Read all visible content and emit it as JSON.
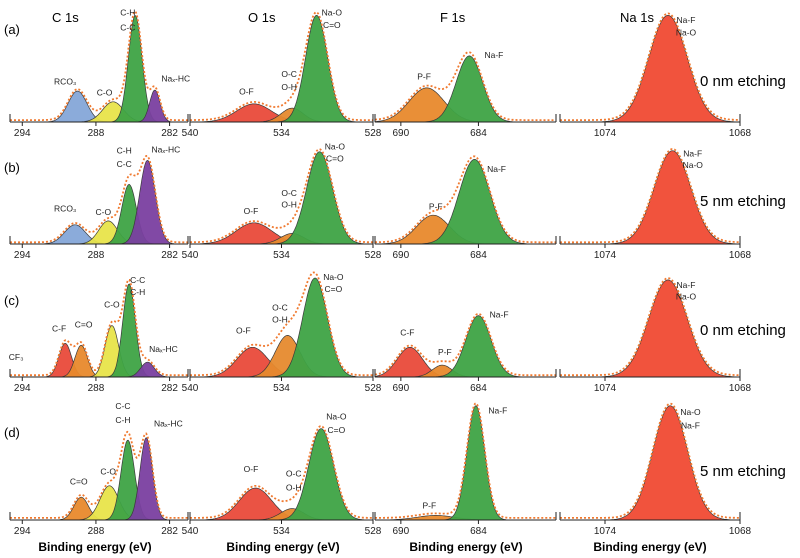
{
  "figure": {
    "x_axis_label": "Binding energy (eV)",
    "columns": [
      {
        "title": "C 1s",
        "xlim": [
          295,
          280.5
        ],
        "ticks": [
          294,
          288,
          282
        ]
      },
      {
        "title": "O 1s",
        "xlim": [
          540,
          528
        ],
        "ticks": [
          540,
          534,
          528
        ]
      },
      {
        "title": "F 1s",
        "xlim": [
          692,
          678
        ],
        "ticks": [
          690,
          684
        ]
      },
      {
        "title": "Na 1s",
        "xlim": [
          1076,
          1068
        ],
        "ticks": [
          1074,
          1068
        ]
      }
    ],
    "rows": [
      {
        "label": "(a)",
        "etch": "0 nm etching"
      },
      {
        "label": "(b)",
        "etch": "5 nm etching"
      },
      {
        "label": "(c)",
        "etch": "0 nm etching"
      },
      {
        "label": "(d)",
        "etch": "5 nm etching"
      }
    ]
  },
  "chart_data": [
    {
      "type": "area",
      "panel": "a-C1s",
      "title": "C 1s",
      "xlabel": "",
      "ylabel": "",
      "xlim": [
        295,
        280.5
      ],
      "ylim": [
        0,
        1.05
      ],
      "series": [
        {
          "name": "RCO3",
          "center": 289.5,
          "fwhm": 1.8,
          "height": 0.29,
          "color": "#85a7d8"
        },
        {
          "name": "C-O",
          "center": 286.6,
          "fwhm": 2.0,
          "height": 0.19,
          "color": "#e8e44a"
        },
        {
          "name": "C-H C-C",
          "center": 284.8,
          "fwhm": 1.3,
          "height": 1.0,
          "color": "#3ea345"
        },
        {
          "name": "Nax-HC",
          "center": 283.2,
          "fwhm": 1.0,
          "height": 0.3,
          "color": "#7a3fa0"
        }
      ],
      "annotations": [
        {
          "text": "C-H",
          "x": 285.4,
          "y": 1.0
        },
        {
          "text": "C-C",
          "x": 285.4,
          "y": 0.86
        },
        {
          "text": "RCO3",
          "x": 290.5,
          "y": 0.35
        },
        {
          "text": "C-O",
          "x": 287.3,
          "y": 0.25
        },
        {
          "text": "Nax-HC",
          "x": 281.5,
          "y": 0.38
        }
      ]
    },
    {
      "type": "area",
      "panel": "a-O1s",
      "title": "O 1s",
      "xlabel": "",
      "ylabel": "",
      "xlim": [
        540,
        528
      ],
      "ylim": [
        0,
        1.05
      ],
      "series": [
        {
          "name": "O-F",
          "center": 535.8,
          "fwhm": 2.7,
          "height": 0.17,
          "color": "#e94a3a"
        },
        {
          "name": "O-C O-H",
          "center": 533.3,
          "fwhm": 1.7,
          "height": 0.13,
          "color": "#e68a2e"
        },
        {
          "name": "Na-O C=O",
          "center": 531.7,
          "fwhm": 1.7,
          "height": 1.0,
          "color": "#3ea345"
        }
      ],
      "annotations": [
        {
          "text": "O-F",
          "x": 536.3,
          "y": 0.26
        },
        {
          "text": "O-C",
          "x": 533.5,
          "y": 0.42
        },
        {
          "text": "O-H",
          "x": 533.5,
          "y": 0.3
        },
        {
          "text": "Na-O",
          "x": 530.7,
          "y": 1.0
        },
        {
          "text": "C=O",
          "x": 530.7,
          "y": 0.88
        }
      ]
    },
    {
      "type": "area",
      "panel": "a-F1s",
      "title": "F 1s",
      "xlabel": "",
      "ylabel": "",
      "xlim": [
        692,
        678
      ],
      "ylim": [
        0,
        1.05
      ],
      "series": [
        {
          "name": "P-F",
          "center": 688.0,
          "fwhm": 3.2,
          "height": 0.32,
          "color": "#e8892c"
        },
        {
          "name": "Na-F",
          "center": 684.7,
          "fwhm": 2.4,
          "height": 0.62,
          "color": "#3ea345"
        }
      ],
      "annotations": [
        {
          "text": "P-F",
          "x": 688.2,
          "y": 0.4
        },
        {
          "text": "Na-F",
          "x": 682.8,
          "y": 0.6
        }
      ]
    },
    {
      "type": "area",
      "panel": "a-Na1s",
      "title": "Na 1s",
      "xlabel": "",
      "ylabel": "",
      "xlim": [
        1076,
        1068
      ],
      "ylim": [
        0,
        1.05
      ],
      "series": [
        {
          "name": "Na-F Na-O",
          "center": 1071.2,
          "fwhm": 2.0,
          "height": 1.0,
          "color": "#f04a33"
        }
      ],
      "annotations": [
        {
          "text": "Na-F",
          "x": 1070.4,
          "y": 0.93
        },
        {
          "text": "Na-O",
          "x": 1070.4,
          "y": 0.81
        }
      ]
    },
    {
      "type": "area",
      "panel": "b-C1s",
      "title": "C 1s",
      "xlabel": "",
      "ylabel": "",
      "xlim": [
        295,
        280.5
      ],
      "ylim": [
        0,
        1.05
      ],
      "series": [
        {
          "name": "RCO3",
          "center": 289.7,
          "fwhm": 2.0,
          "height": 0.2,
          "color": "#85a7d8"
        },
        {
          "name": "C-O",
          "center": 287.0,
          "fwhm": 1.8,
          "height": 0.24,
          "color": "#e8e44a"
        },
        {
          "name": "C-H C-C",
          "center": 285.3,
          "fwhm": 1.4,
          "height": 0.62,
          "color": "#3ea345"
        },
        {
          "name": "Nax-HC",
          "center": 283.8,
          "fwhm": 1.5,
          "height": 0.87,
          "color": "#7a3fa0"
        }
      ],
      "annotations": [
        {
          "text": "C-H",
          "x": 285.7,
          "y": 0.94
        },
        {
          "text": "C-C",
          "x": 285.7,
          "y": 0.8
        },
        {
          "text": "Nax-HC",
          "x": 282.3,
          "y": 0.95
        },
        {
          "text": "RCO3",
          "x": 290.5,
          "y": 0.34
        },
        {
          "text": "C-O",
          "x": 287.4,
          "y": 0.3
        }
      ]
    },
    {
      "type": "area",
      "panel": "b-O1s",
      "title": "O 1s",
      "xlabel": "",
      "ylabel": "",
      "xlim": [
        540,
        528
      ],
      "ylim": [
        0,
        1.05
      ],
      "series": [
        {
          "name": "O-F",
          "center": 535.8,
          "fwhm": 2.8,
          "height": 0.22,
          "color": "#e94a3a"
        },
        {
          "name": "O-C O-H",
          "center": 533.3,
          "fwhm": 1.8,
          "height": 0.11,
          "color": "#e68a2e"
        },
        {
          "name": "Na-O C=O",
          "center": 531.5,
          "fwhm": 2.0,
          "height": 0.96,
          "color": "#3ea345"
        }
      ],
      "annotations": [
        {
          "text": "O-F",
          "x": 536.0,
          "y": 0.31
        },
        {
          "text": "O-C",
          "x": 533.5,
          "y": 0.5
        },
        {
          "text": "O-H",
          "x": 533.5,
          "y": 0.38
        },
        {
          "text": "Na-O",
          "x": 530.5,
          "y": 0.98
        },
        {
          "text": "C=O",
          "x": 530.5,
          "y": 0.86
        }
      ]
    },
    {
      "type": "area",
      "panel": "b-F1s",
      "title": "F 1s",
      "xlabel": "",
      "ylabel": "",
      "xlim": [
        692,
        678
      ],
      "ylim": [
        0,
        1.05
      ],
      "series": [
        {
          "name": "P-F",
          "center": 687.5,
          "fwhm": 3.0,
          "height": 0.3,
          "color": "#e8892c"
        },
        {
          "name": "Na-F",
          "center": 684.3,
          "fwhm": 2.8,
          "height": 0.88,
          "color": "#3ea345"
        }
      ],
      "annotations": [
        {
          "text": "P-F",
          "x": 687.3,
          "y": 0.36
        },
        {
          "text": "Na-F",
          "x": 682.6,
          "y": 0.75
        }
      ]
    },
    {
      "type": "area",
      "panel": "b-Na1s",
      "title": "Na 1s",
      "xlabel": "",
      "ylabel": "",
      "xlim": [
        1076,
        1068
      ],
      "ylim": [
        0,
        1.05
      ],
      "series": [
        {
          "name": "Na-F Na-O",
          "center": 1071.0,
          "fwhm": 1.9,
          "height": 0.97,
          "color": "#f04a33"
        }
      ],
      "annotations": [
        {
          "text": "Na-F",
          "x": 1070.1,
          "y": 0.91
        },
        {
          "text": "Na-O",
          "x": 1070.1,
          "y": 0.79
        }
      ]
    },
    {
      "type": "area",
      "panel": "c-C1s",
      "title": "C 1s",
      "xlabel": "",
      "ylabel": "",
      "xlim": [
        295,
        280.5
      ],
      "ylim": [
        0,
        1.05
      ],
      "series": [
        {
          "name": "C-F",
          "center": 290.5,
          "fwhm": 1.2,
          "height": 0.34,
          "color": "#e94a3a"
        },
        {
          "name": "C=O",
          "center": 289.2,
          "fwhm": 1.2,
          "height": 0.32,
          "color": "#e8892c"
        },
        {
          "name": "C-O",
          "center": 286.7,
          "fwhm": 1.3,
          "height": 0.52,
          "color": "#e8e44a"
        },
        {
          "name": "C-C C-H",
          "center": 285.3,
          "fwhm": 1.2,
          "height": 0.94,
          "color": "#3ea345"
        },
        {
          "name": "Nax-HC",
          "center": 283.8,
          "fwhm": 1.3,
          "height": 0.15,
          "color": "#7a3fa0"
        }
      ],
      "annotations": [
        {
          "text": "C-C",
          "x": 284.6,
          "y": 0.95
        },
        {
          "text": "C-H",
          "x": 284.6,
          "y": 0.83
        },
        {
          "text": "C-O",
          "x": 286.7,
          "y": 0.7
        },
        {
          "text": "C=O",
          "x": 289.0,
          "y": 0.5
        },
        {
          "text": "C-F",
          "x": 291.0,
          "y": 0.46
        },
        {
          "text": "CF3",
          "x": 294.5,
          "y": 0.17
        },
        {
          "text": "Nax-HC",
          "x": 282.5,
          "y": 0.25
        }
      ]
    },
    {
      "type": "area",
      "panel": "c-O1s",
      "title": "O 1s",
      "xlabel": "",
      "ylabel": "",
      "xlim": [
        540,
        528
      ],
      "ylim": [
        0,
        1.05
      ],
      "series": [
        {
          "name": "O-F",
          "center": 535.9,
          "fwhm": 2.4,
          "height": 0.3,
          "color": "#e94a3a"
        },
        {
          "name": "O-C O-H",
          "center": 533.6,
          "fwhm": 1.9,
          "height": 0.42,
          "color": "#e68a2e"
        },
        {
          "name": "Na-O C=O",
          "center": 531.8,
          "fwhm": 1.9,
          "height": 1.0,
          "color": "#3ea345"
        }
      ],
      "annotations": [
        {
          "text": "O-F",
          "x": 536.5,
          "y": 0.44
        },
        {
          "text": "O-C",
          "x": 534.1,
          "y": 0.67
        },
        {
          "text": "O-H",
          "x": 534.1,
          "y": 0.55
        },
        {
          "text": "Na-O",
          "x": 530.6,
          "y": 0.98
        },
        {
          "text": "C=O",
          "x": 530.6,
          "y": 0.86
        }
      ]
    },
    {
      "type": "area",
      "panel": "c-F1s",
      "title": "F 1s",
      "xlabel": "",
      "ylabel": "",
      "xlim": [
        692,
        678
      ],
      "ylim": [
        0,
        1.05
      ],
      "series": [
        {
          "name": "C-F",
          "center": 689.3,
          "fwhm": 2.3,
          "height": 0.3,
          "color": "#e94a3a"
        },
        {
          "name": "P-F",
          "center": 686.8,
          "fwhm": 1.8,
          "height": 0.12,
          "color": "#e8892c"
        },
        {
          "name": "Na-F",
          "center": 684.0,
          "fwhm": 2.3,
          "height": 0.62,
          "color": "#3ea345"
        }
      ],
      "annotations": [
        {
          "text": "C-F",
          "x": 689.5,
          "y": 0.42
        },
        {
          "text": "P-F",
          "x": 686.6,
          "y": 0.22
        },
        {
          "text": "Na-F",
          "x": 682.4,
          "y": 0.6
        }
      ]
    },
    {
      "type": "area",
      "panel": "c-Na1s",
      "title": "Na 1s",
      "xlabel": "",
      "ylabel": "",
      "xlim": [
        1076,
        1068
      ],
      "ylim": [
        0,
        1.05
      ],
      "series": [
        {
          "name": "Na-F Na-O",
          "center": 1071.2,
          "fwhm": 2.0,
          "height": 0.98,
          "color": "#f04a33"
        }
      ],
      "annotations": [
        {
          "text": "Na-F",
          "x": 1070.4,
          "y": 0.9
        },
        {
          "text": "Na-O",
          "x": 1070.4,
          "y": 0.78
        }
      ]
    },
    {
      "type": "area",
      "panel": "d-C1s",
      "title": "C 1s",
      "xlabel": "",
      "ylabel": "",
      "xlim": [
        295,
        280.5
      ],
      "ylim": [
        0,
        1.05
      ],
      "series": [
        {
          "name": "C=O",
          "center": 289.2,
          "fwhm": 1.4,
          "height": 0.2,
          "color": "#e8892c"
        },
        {
          "name": "C-O",
          "center": 286.9,
          "fwhm": 1.8,
          "height": 0.3,
          "color": "#e8e44a"
        },
        {
          "name": "C-C C-H",
          "center": 285.4,
          "fwhm": 1.3,
          "height": 0.7,
          "color": "#3ea345"
        },
        {
          "name": "Nax-HC",
          "center": 283.9,
          "fwhm": 1.2,
          "height": 0.72,
          "color": "#7a3fa0"
        }
      ],
      "annotations": [
        {
          "text": "C-C",
          "x": 285.8,
          "y": 0.97
        },
        {
          "text": "C-H",
          "x": 285.8,
          "y": 0.85
        },
        {
          "text": "Nax-HC",
          "x": 282.1,
          "y": 0.82
        },
        {
          "text": "C=O",
          "x": 289.4,
          "y": 0.31
        },
        {
          "text": "C-O",
          "x": 287.0,
          "y": 0.4
        }
      ]
    },
    {
      "type": "area",
      "panel": "d-O1s",
      "title": "O 1s",
      "xlabel": "",
      "ylabel": "",
      "xlim": [
        540,
        528
      ],
      "ylim": [
        0,
        1.05
      ],
      "series": [
        {
          "name": "O-F",
          "center": 535.7,
          "fwhm": 2.5,
          "height": 0.28,
          "color": "#e94a3a"
        },
        {
          "name": "O-C O-H",
          "center": 533.3,
          "fwhm": 1.8,
          "height": 0.1,
          "color": "#e68a2e"
        },
        {
          "name": "Na-O C=O",
          "center": 531.4,
          "fwhm": 1.9,
          "height": 0.8,
          "color": "#3ea345"
        }
      ],
      "annotations": [
        {
          "text": "O-F",
          "x": 536.0,
          "y": 0.42
        },
        {
          "text": "O-C",
          "x": 533.2,
          "y": 0.38
        },
        {
          "text": "O-H",
          "x": 533.2,
          "y": 0.26
        },
        {
          "text": "Na-O",
          "x": 530.4,
          "y": 0.88
        },
        {
          "text": "C=O",
          "x": 530.4,
          "y": 0.76
        }
      ]
    },
    {
      "type": "area",
      "panel": "d-F1s",
      "title": "F 1s",
      "xlabel": "",
      "ylabel": "",
      "xlim": [
        692,
        678
      ],
      "ylim": [
        0,
        1.05
      ],
      "series": [
        {
          "name": "P-F",
          "center": 687.3,
          "fwhm": 3.4,
          "height": 0.04,
          "color": "#e8892c"
        },
        {
          "name": "Na-F",
          "center": 684.2,
          "fwhm": 1.6,
          "height": 1.0,
          "color": "#3ea345"
        }
      ],
      "annotations": [
        {
          "text": "P-F",
          "x": 687.8,
          "y": 0.1
        },
        {
          "text": "Na-F",
          "x": 682.5,
          "y": 0.93
        }
      ]
    },
    {
      "type": "area",
      "panel": "d-Na1s",
      "title": "Na 1s",
      "xlabel": "",
      "ylabel": "",
      "xlim": [
        1076,
        1068
      ],
      "ylim": [
        0,
        1.05
      ],
      "series": [
        {
          "name": "Na-O Na-F",
          "center": 1071.1,
          "fwhm": 1.8,
          "height": 1.0,
          "color": "#f04a33"
        }
      ],
      "annotations": [
        {
          "text": "Na-O",
          "x": 1070.2,
          "y": 0.92
        },
        {
          "text": "Na-F",
          "x": 1070.2,
          "y": 0.8
        }
      ]
    }
  ]
}
